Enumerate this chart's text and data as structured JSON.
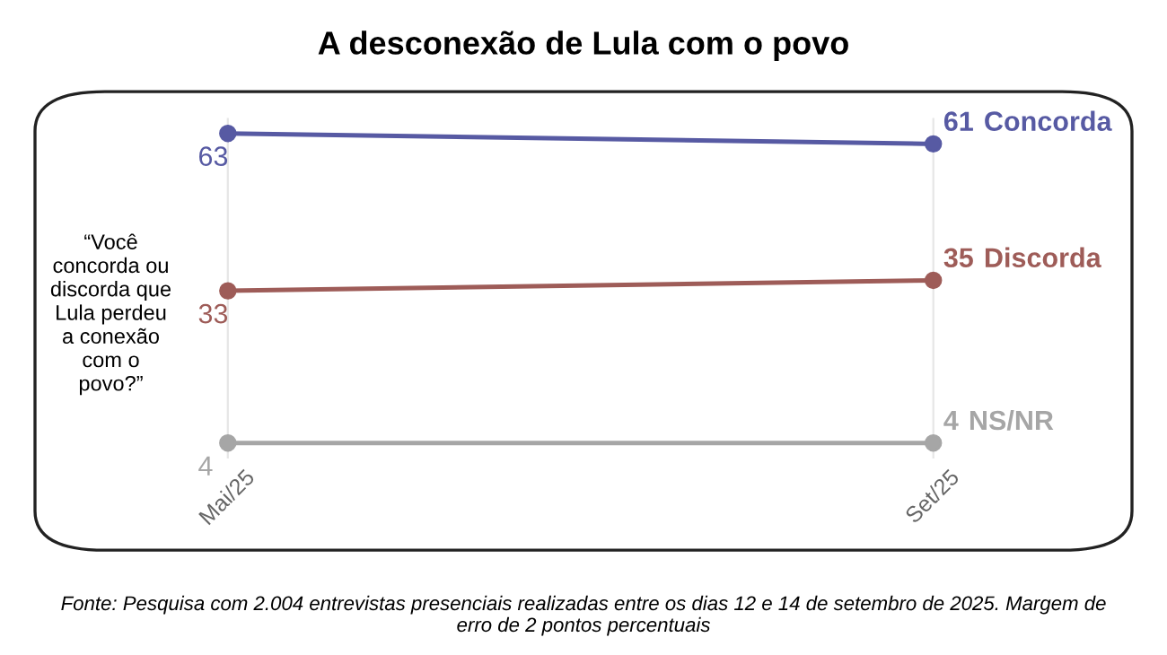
{
  "chart_data": {
    "type": "line",
    "title": "A desconexão de Lula com o povo",
    "categories": [
      "Mai/25",
      "Set/25"
    ],
    "series": [
      {
        "name": "Concorda",
        "color": "#575aa3",
        "values": [
          63,
          61
        ]
      },
      {
        "name": "Discorda",
        "color": "#9e5c58",
        "values": [
          33,
          35
        ]
      },
      {
        "name": "NS/NR",
        "color": "#a6a6a6",
        "values": [
          4,
          4
        ]
      }
    ],
    "data_labels": true,
    "marker": "circle",
    "line_style": "solid",
    "grid": "x",
    "legend": false,
    "tick_labels": "x",
    "annotations": [
      "“Você concorda ou discorda que Lula perdeu a conexão com o povo?”",
      "Fonte: Pesquisa com 2.004 entrevistas presenciais realizadas entre os dias 12 e 14 de setembro de 2025. Margem de erro de 2 pontos percentuais"
    ]
  }
}
